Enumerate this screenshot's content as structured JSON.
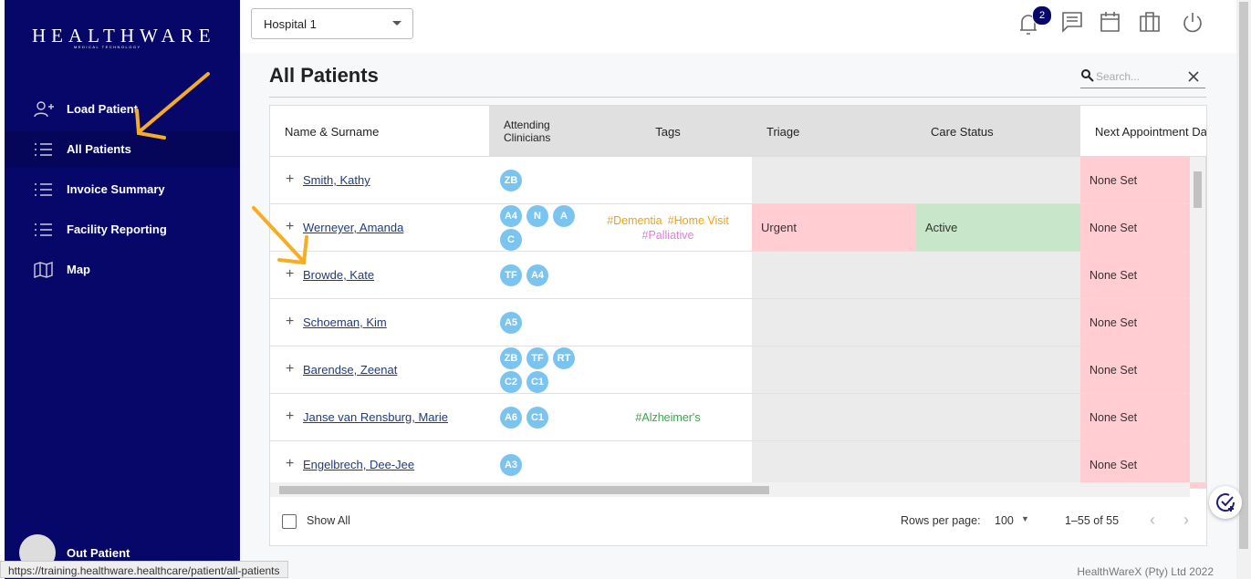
{
  "sidebar": {
    "logo": "HEALTHWARE",
    "logo_sub": "MEDICAL TECHNOLOGY",
    "menu": [
      "Load Patient",
      "All Patients",
      "Invoice Summary",
      "Facility Reporting",
      "Map"
    ],
    "user": "Out Patient"
  },
  "topbar": {
    "hospital": "Hospital 1",
    "notifications": 2
  },
  "page": {
    "title": "All Patients",
    "search_placeholder": "Search..."
  },
  "table": {
    "columns": [
      "Name & Surname",
      "Attending Clinicians",
      "Tags",
      "Triage",
      "Care Status",
      "Next Appointment Da"
    ],
    "rows": [
      {
        "name": "Smith, Kathy",
        "clinicians": [
          "ZB"
        ],
        "next_appointment": "None Set"
      },
      {
        "name": "Werneyer, Amanda",
        "clinicians": [
          "A4",
          "N",
          "A",
          "C"
        ],
        "tags": [
          {
            "text": "#Dementia",
            "color": "#f2a20f"
          },
          {
            "text": "#Home Visit",
            "color": "#f2a20f"
          },
          {
            "text": "#Palliative",
            "color": "#e07ee0"
          }
        ],
        "triage": "Urgent",
        "care_status": "Active",
        "next_appointment": "None Set"
      },
      {
        "name": "Browde, Kate",
        "clinicians": [
          "TF",
          "A4"
        ],
        "next_appointment": "None Set"
      },
      {
        "name": "Schoeman, Kim",
        "clinicians": [
          "A5"
        ],
        "next_appointment": "None Set"
      },
      {
        "name": "Barendse, Zeenat",
        "clinicians": [
          "ZB",
          "TF",
          "RT",
          "C2",
          "C1"
        ],
        "next_appointment": "None Set"
      },
      {
        "name": "Janse van Rensburg, Marie",
        "clinicians": [
          "A6",
          "C1"
        ],
        "tags": [
          {
            "text": "#Alzheimer's",
            "color": "#3aa64a"
          }
        ],
        "next_appointment": "None Set"
      },
      {
        "name": "Engelbrech, Dee-Jee",
        "clinicians": [
          "A3"
        ],
        "next_appointment": "None Set"
      }
    ]
  },
  "footer": {
    "show_all": "Show All",
    "rows_per_page_label": "Rows per page:",
    "rows_per_page": 100,
    "range": "1–55 of 55"
  },
  "status_url": "https://training.healthware.healthcare/patient/all-patients",
  "copyright": "HealthWareX (Pty) Ltd 2022"
}
